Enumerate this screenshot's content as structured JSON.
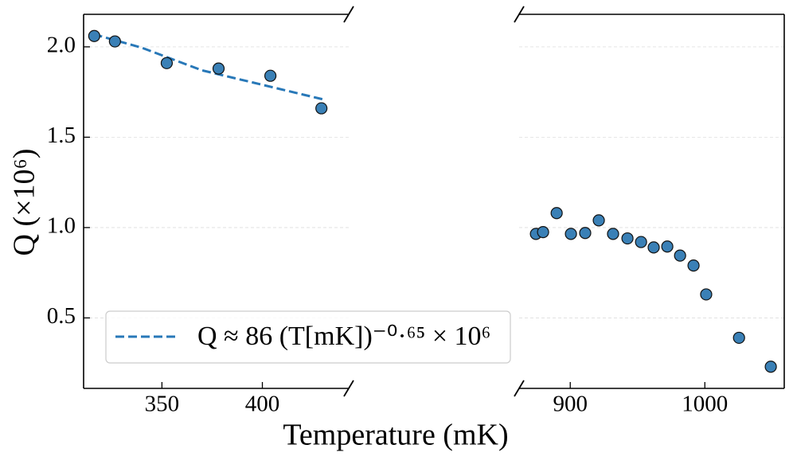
{
  "chart_data": {
    "type": "scatter",
    "xlabel": "Temperature (mK)",
    "ylabel": "Q (×10⁶)",
    "ylim": [
      0.11,
      2.18
    ],
    "yticks": [
      0.5,
      {
        "value": 1,
        "label": "1.0"
      },
      1.5,
      {
        "value": 2,
        "label": "2.0"
      }
    ],
    "grid": true,
    "legend": "lower left",
    "panels": [
      {
        "xlim": [
          311,
          443
        ],
        "xticks": [
          350,
          400
        ]
      },
      {
        "xlim": [
          862,
          1059
        ],
        "xticks": [
          900,
          1000
        ]
      }
    ],
    "series": [
      {
        "name": "Q ≈ 86 (T[mK])⁻⁰·⁶⁵ × 10⁶",
        "kind": "dashed line",
        "color": "#2878b8",
        "x": [
          316,
          340,
          370,
          400,
          430
        ],
        "values": [
          2.07,
          1.995,
          1.87,
          1.79,
          1.71
        ]
      },
      {
        "kind": "markers",
        "color": "#3a80b6",
        "x": [
          316.3,
          326.6,
          352.4,
          378.2,
          404,
          429.4,
          874.5,
          879.8,
          889.9,
          900.5,
          911.1,
          921.2,
          931.8,
          942.5,
          952.6,
          962,
          972.1,
          981.6,
          991.6,
          1001,
          1025.4,
          1049
        ],
        "values": [
          2.06,
          2.03,
          1.91,
          1.88,
          1.84,
          1.66,
          0.965,
          0.975,
          1.08,
          0.965,
          0.97,
          1.04,
          0.965,
          0.94,
          0.92,
          0.89,
          0.895,
          0.845,
          0.79,
          0.63,
          0.39,
          0.23
        ]
      }
    ]
  }
}
